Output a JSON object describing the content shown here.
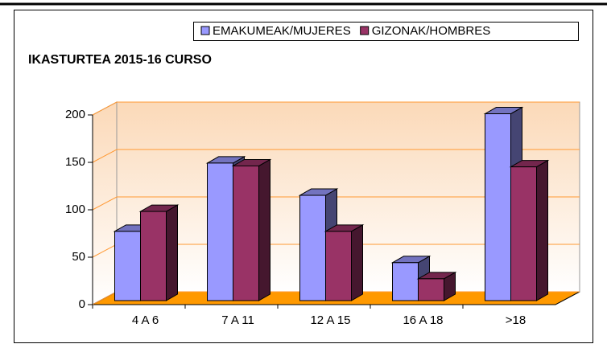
{
  "chart_data": {
    "type": "bar3d",
    "title": "IKASTURTEA 2015-16 CURSO",
    "categories": [
      "4 A 6",
      "7 A 11",
      "12 A 15",
      "16 A 18",
      ">18"
    ],
    "series": [
      {
        "name": "EMAKUMEAK/MUJERES",
        "color": "#9999ff",
        "values": [
          73,
          145,
          111,
          40,
          197
        ]
      },
      {
        "name": "GIZONAK/HOMBRES",
        "color": "#993366",
        "values": [
          94,
          142,
          73,
          23,
          141
        ]
      }
    ],
    "ylim": [
      0,
      200
    ],
    "yticks": [
      0,
      50,
      100,
      150,
      200
    ],
    "grid": true,
    "legend": "top-right"
  }
}
